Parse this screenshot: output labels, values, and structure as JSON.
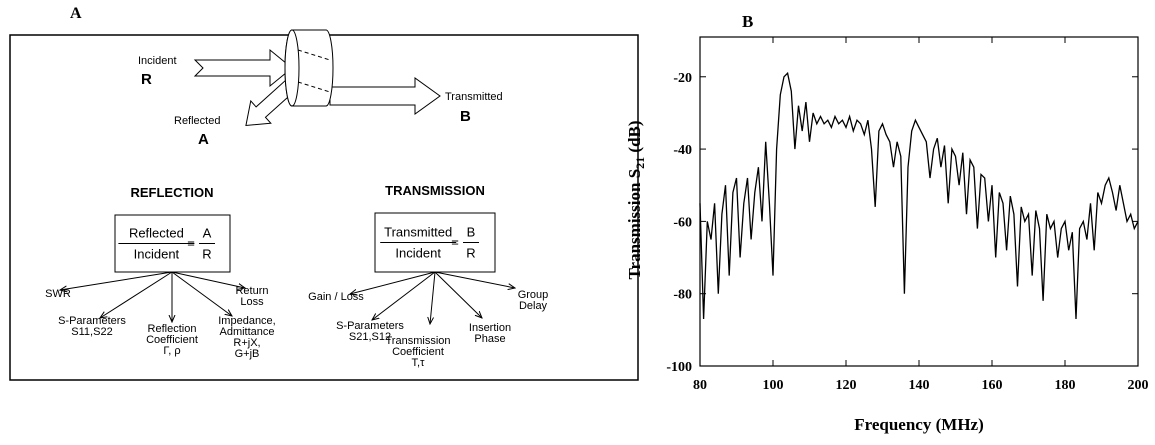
{
  "diagram": {
    "label": "A",
    "incident": "Incident",
    "incident_symbol": "R",
    "reflected": "Reflected",
    "reflected_symbol": "A",
    "transmitted": "Transmitted",
    "transmitted_symbol": "B",
    "reflection": {
      "title": "REFLECTION",
      "numerator": "Reflected",
      "denominator": "Incident",
      "equals": "=",
      "ratio_numerator": "A",
      "ratio_denominator": "R",
      "leaves": [
        [
          "SWR"
        ],
        [
          "S-Parameters",
          "S11,S22"
        ],
        [
          "Reflection",
          "Coefficient",
          "Γ, ρ"
        ],
        [
          "Impedance,",
          "Admittance",
          "R+jX,",
          "G+jB"
        ],
        [
          "Return",
          "Loss"
        ]
      ]
    },
    "transmission": {
      "title": "TRANSMISSION",
      "numerator": "Transmitted",
      "denominator": "Incident",
      "equals": "=",
      "ratio_numerator": "B",
      "ratio_denominator": "R",
      "leaves": [
        [
          "Gain / Loss"
        ],
        [
          "S-Parameters",
          "S21,S12"
        ],
        [
          "Transmission",
          "Coefficient",
          "T,τ"
        ],
        [
          "Insertion",
          "Phase"
        ],
        [
          "Group",
          "Delay"
        ]
      ]
    }
  },
  "chart_data": {
    "type": "line",
    "title": "B",
    "xlabel": "Frequency (MHz)",
    "ylabel": {
      "text": "Transmission S",
      "subscript": "21",
      "suffix": " (dB)"
    },
    "color": "#000000",
    "xlim": [
      80,
      200
    ],
    "xticks": [
      80,
      100,
      120,
      140,
      160,
      180,
      200
    ],
    "ylim": [
      -100,
      -9
    ],
    "yticks": [
      -100,
      -80,
      -60,
      -40,
      -20
    ],
    "x": [
      80,
      81,
      82,
      83,
      84,
      85,
      86,
      87,
      88,
      89,
      90,
      91,
      92,
      93,
      94,
      95,
      96,
      97,
      98,
      99,
      100,
      101,
      102,
      103,
      104,
      105,
      106,
      107,
      108,
      109,
      110,
      111,
      112,
      113,
      114,
      115,
      116,
      117,
      118,
      119,
      120,
      121,
      122,
      123,
      124,
      125,
      126,
      127,
      128,
      129,
      130,
      131,
      132,
      133,
      134,
      135,
      136,
      137,
      138,
      139,
      140,
      141,
      142,
      143,
      144,
      145,
      146,
      147,
      148,
      149,
      150,
      151,
      152,
      153,
      154,
      155,
      156,
      157,
      158,
      159,
      160,
      161,
      162,
      163,
      164,
      165,
      166,
      167,
      168,
      169,
      170,
      171,
      172,
      173,
      174,
      175,
      176,
      177,
      178,
      179,
      180,
      181,
      182,
      183,
      184,
      185,
      186,
      187,
      188,
      189,
      190,
      191,
      192,
      193,
      194,
      195,
      196,
      197,
      198,
      199,
      200
    ],
    "values": [
      -55,
      -87,
      -60,
      -65,
      -55,
      -80,
      -58,
      -50,
      -75,
      -52,
      -48,
      -70,
      -55,
      -48,
      -65,
      -52,
      -45,
      -60,
      -38,
      -55,
      -75,
      -40,
      -25,
      -20,
      -19,
      -24,
      -40,
      -28,
      -35,
      -27,
      -38,
      -30,
      -33,
      -31,
      -33,
      -32,
      -34,
      -31,
      -33,
      -32,
      -34,
      -31,
      -35,
      -32,
      -33,
      -36,
      -32,
      -40,
      -56,
      -35,
      -33,
      -36,
      -38,
      -45,
      -38,
      -42,
      -80,
      -45,
      -35,
      -32,
      -34,
      -36,
      -38,
      -48,
      -40,
      -37,
      -45,
      -39,
      -55,
      -40,
      -42,
      -50,
      -41,
      -58,
      -43,
      -45,
      -62,
      -47,
      -48,
      -60,
      -50,
      -70,
      -52,
      -55,
      -68,
      -53,
      -58,
      -78,
      -56,
      -60,
      -58,
      -75,
      -57,
      -62,
      -82,
      -58,
      -62,
      -60,
      -70,
      -62,
      -60,
      -68,
      -63,
      -87,
      -62,
      -60,
      -65,
      -55,
      -68,
      -52,
      -55,
      -50,
      -48,
      -52,
      -57,
      -50,
      -55,
      -60,
      -58,
      -62,
      -60
    ]
  }
}
